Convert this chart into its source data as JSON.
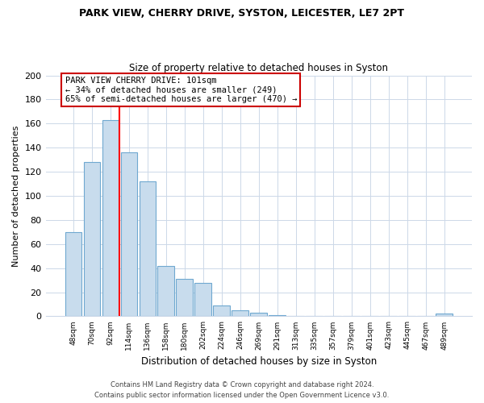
{
  "title_line1": "PARK VIEW, CHERRY DRIVE, SYSTON, LEICESTER, LE7 2PT",
  "title_line2": "Size of property relative to detached houses in Syston",
  "xlabel": "Distribution of detached houses by size in Syston",
  "ylabel": "Number of detached properties",
  "bar_labels": [
    "48sqm",
    "70sqm",
    "92sqm",
    "114sqm",
    "136sqm",
    "158sqm",
    "180sqm",
    "202sqm",
    "224sqm",
    "246sqm",
    "269sqm",
    "291sqm",
    "313sqm",
    "335sqm",
    "357sqm",
    "379sqm",
    "401sqm",
    "423sqm",
    "445sqm",
    "467sqm",
    "489sqm"
  ],
  "bar_values": [
    70,
    128,
    163,
    136,
    112,
    42,
    31,
    28,
    9,
    5,
    3,
    1,
    0,
    0,
    0,
    0,
    0,
    0,
    0,
    0,
    2
  ],
  "bar_color": "#c8dced",
  "bar_edgecolor": "#6fa8d0",
  "vline_x": 2.5,
  "vline_color": "red",
  "ylim": [
    0,
    200
  ],
  "yticks": [
    0,
    20,
    40,
    60,
    80,
    100,
    120,
    140,
    160,
    180,
    200
  ],
  "annotation_box_text": "PARK VIEW CHERRY DRIVE: 101sqm\n← 34% of detached houses are smaller (249)\n65% of semi-detached houses are larger (470) →",
  "footer_line1": "Contains HM Land Registry data © Crown copyright and database right 2024.",
  "footer_line2": "Contains public sector information licensed under the Open Government Licence v3.0.",
  "background_color": "#ffffff",
  "grid_color": "#ccd8e8"
}
